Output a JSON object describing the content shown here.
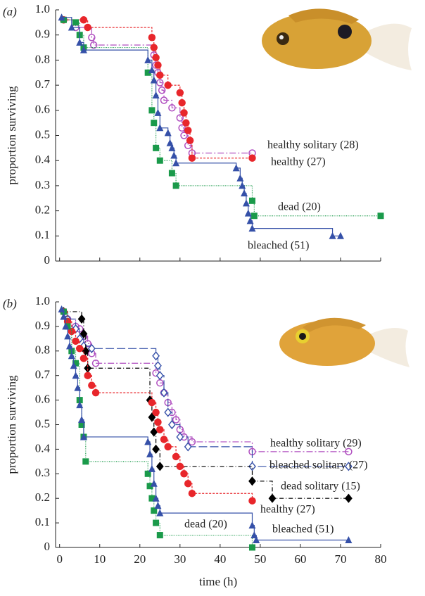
{
  "chart_data": [
    {
      "type": "line",
      "panel_label": "(a)",
      "ylabel": "proportion surviving",
      "xlim": [
        -1,
        80
      ],
      "ylim": [
        0,
        1
      ],
      "xticks": [
        0,
        10,
        20,
        30,
        40,
        50,
        60,
        70,
        80
      ],
      "yticks": [
        0,
        0.1,
        0.2,
        0.3,
        0.4,
        0.5,
        0.6,
        0.7,
        0.8,
        0.9,
        {
          "value": 1,
          "label": "1.0"
        }
      ],
      "series": [
        {
          "name": "healthy solitary (28)",
          "color": "#b04fc0",
          "marker": "circle-open",
          "dash": "9 3 2 3",
          "x": [
            1,
            4,
            8,
            8.5,
            23.5,
            24,
            24.5,
            25,
            25.5,
            26,
            28,
            30,
            30.5,
            31,
            32,
            33,
            48
          ],
          "values": [
            0.96,
            0.93,
            0.89,
            0.86,
            0.82,
            0.78,
            0.75,
            0.71,
            0.68,
            0.64,
            0.61,
            0.57,
            0.53,
            0.5,
            0.46,
            0.43,
            0.43
          ]
        },
        {
          "name": "healthy (27)",
          "color": "#e8262b",
          "marker": "circle",
          "dash": "3 2",
          "x": [
            1,
            6,
            7,
            23,
            23.5,
            24,
            24.5,
            25,
            27,
            30,
            30.5,
            31,
            31.5,
            32,
            32.5,
            33,
            48
          ],
          "values": [
            0.96,
            0.96,
            0.93,
            0.89,
            0.85,
            0.81,
            0.78,
            0.74,
            0.7,
            0.67,
            0.63,
            0.59,
            0.55,
            0.52,
            0.48,
            0.41,
            0.41
          ]
        },
        {
          "name": "dead (20)",
          "color": "#1a9a4a",
          "marker": "square",
          "dash": "1 1.5",
          "x": [
            1,
            4,
            5,
            6,
            22,
            23,
            23.5,
            24,
            25,
            28,
            29,
            48,
            48.5,
            80
          ],
          "values": [
            0.96,
            0.95,
            0.9,
            0.85,
            0.75,
            0.6,
            0.55,
            0.45,
            0.4,
            0.35,
            0.3,
            0.24,
            0.18,
            0.18
          ]
        },
        {
          "name": "bleached (51)",
          "color": "#3550a8",
          "marker": "triangle",
          "dash": "none",
          "x": [
            0.5,
            3,
            5,
            6,
            22,
            23,
            23.5,
            24,
            24.5,
            25,
            27,
            27.5,
            28,
            28.5,
            29,
            44,
            45,
            45.5,
            46,
            46.5,
            47,
            47.5,
            48,
            68,
            70
          ],
          "values": [
            0.97,
            0.93,
            0.87,
            0.84,
            0.8,
            0.76,
            0.72,
            0.66,
            0.59,
            0.53,
            0.51,
            0.47,
            0.45,
            0.42,
            0.39,
            0.37,
            0.33,
            0.3,
            0.27,
            0.23,
            0.19,
            0.16,
            0.13,
            0.1,
            0.1
          ]
        }
      ]
    },
    {
      "type": "line",
      "panel_label": "(b)",
      "ylabel": "proportion surviving",
      "xlabel": "time (h)",
      "xlim": [
        -1,
        80
      ],
      "ylim": [
        0,
        1
      ],
      "xticks": [
        0,
        10,
        20,
        30,
        40,
        50,
        60,
        70,
        80
      ],
      "yticks": [
        0,
        0.1,
        0.2,
        0.3,
        0.4,
        0.5,
        0.6,
        0.7,
        0.8,
        0.9,
        {
          "value": 1,
          "label": "1.0"
        }
      ],
      "series": [
        {
          "name": "healthy solitary (29)",
          "color": "#b04fc0",
          "marker": "circle-open",
          "dash": "9 3 2 3",
          "x": [
            1,
            2,
            4,
            5,
            6,
            7,
            8,
            9,
            24,
            25,
            26,
            27,
            28,
            29,
            30,
            31,
            33,
            48,
            72
          ],
          "values": [
            0.96,
            0.93,
            0.9,
            0.89,
            0.86,
            0.83,
            0.79,
            0.75,
            0.71,
            0.67,
            0.63,
            0.59,
            0.55,
            0.52,
            0.48,
            0.45,
            0.43,
            0.39,
            0.39
          ]
        },
        {
          "name": "bleached solitary (27)",
          "color": "#3550a8",
          "marker": "diamond-open",
          "dash": "12 4",
          "x": [
            1,
            2,
            4,
            5,
            6,
            8,
            24,
            24.5,
            25,
            26,
            27,
            28,
            30,
            32,
            48,
            72
          ],
          "values": [
            0.96,
            0.93,
            0.89,
            0.85,
            0.82,
            0.81,
            0.78,
            0.74,
            0.7,
            0.63,
            0.55,
            0.5,
            0.45,
            0.41,
            0.33,
            0.33
          ]
        },
        {
          "name": "dead solitary (15)",
          "color": "#000000",
          "marker": "diamond",
          "dash": "6 3 1 3",
          "x": [
            1,
            5.5,
            6,
            6.5,
            7,
            22.5,
            23,
            23.5,
            24,
            25,
            48,
            53,
            72
          ],
          "values": [
            0.96,
            0.93,
            0.87,
            0.8,
            0.73,
            0.6,
            0.53,
            0.47,
            0.4,
            0.33,
            0.27,
            0.2,
            0.2
          ]
        },
        {
          "name": "healthy (27)",
          "color": "#e8262b",
          "marker": "circle",
          "dash": "3 2",
          "x": [
            1,
            2,
            3,
            4,
            5,
            6,
            7,
            8,
            9,
            23,
            24,
            24.5,
            25,
            26,
            27,
            29,
            30,
            31,
            32,
            33,
            48
          ],
          "values": [
            0.96,
            0.92,
            0.88,
            0.84,
            0.81,
            0.77,
            0.7,
            0.66,
            0.63,
            0.59,
            0.55,
            0.51,
            0.48,
            0.44,
            0.41,
            0.37,
            0.33,
            0.3,
            0.26,
            0.22,
            0.19
          ]
        },
        {
          "name": "dead (20)",
          "color": "#1a9a4a",
          "marker": "square",
          "dash": "1 1.5",
          "x": [
            1,
            2,
            3,
            4,
            5,
            5.5,
            6,
            6.5,
            22,
            22.5,
            23,
            23.5,
            24,
            25,
            48
          ],
          "values": [
            0.96,
            0.9,
            0.8,
            0.75,
            0.6,
            0.5,
            0.45,
            0.35,
            0.3,
            0.25,
            0.2,
            0.15,
            0.1,
            0.05,
            0
          ]
        },
        {
          "name": "bleached (51)",
          "color": "#3550a8",
          "marker": "triangle",
          "dash": "none",
          "x": [
            0.5,
            1,
            1.5,
            2,
            2.5,
            3,
            3.5,
            4,
            4.5,
            5,
            5.5,
            6,
            22,
            22.5,
            23,
            23.5,
            24,
            24.5,
            25,
            48,
            48.5,
            49,
            72
          ],
          "values": [
            0.97,
            0.94,
            0.9,
            0.86,
            0.82,
            0.78,
            0.74,
            0.7,
            0.65,
            0.58,
            0.52,
            0.45,
            0.43,
            0.38,
            0.32,
            0.26,
            0.2,
            0.17,
            0.14,
            0.09,
            0.05,
            0.03,
            0.03
          ]
        }
      ]
    }
  ]
}
